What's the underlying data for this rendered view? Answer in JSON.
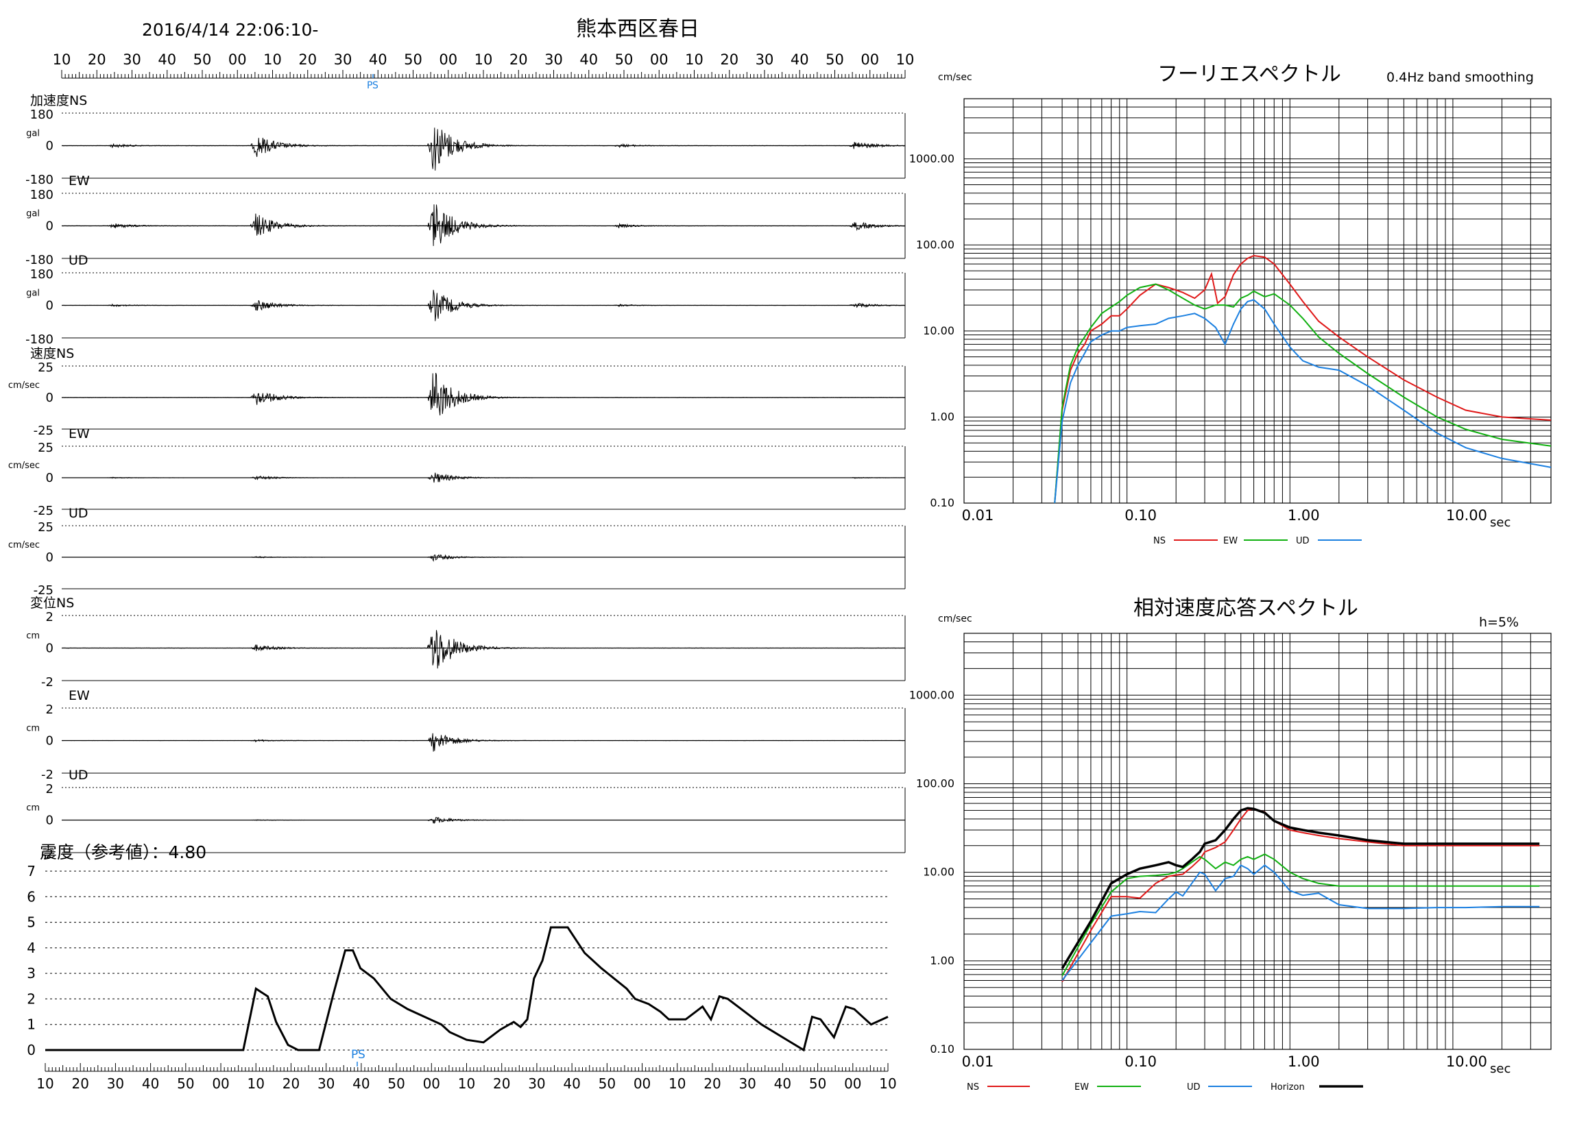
{
  "header": {
    "datetime": "2016/4/14 22:06:10-",
    "station": "熊本西区春日",
    "time_ticks": [
      "10",
      "20",
      "30",
      "40",
      "50",
      "00",
      "10",
      "20",
      "30",
      "40",
      "50",
      "00",
      "10",
      "20",
      "30",
      "40",
      "50",
      "00",
      "10",
      "20",
      "30",
      "40",
      "50",
      "00",
      "10"
    ],
    "phase_labels": [
      "P",
      "S"
    ]
  },
  "colors": {
    "ns": "#e01818",
    "ew": "#10b010",
    "ud": "#1a7fe0",
    "horizon": "#000000",
    "phase": "#1a7fe0",
    "grid": "#000000",
    "trace": "#000000"
  },
  "waveforms": {
    "groups": [
      {
        "name": "加速度",
        "unit": "gal"
      },
      {
        "name": "速度",
        "unit": "cm/sec"
      },
      {
        "name": "変位",
        "unit": "cm"
      }
    ],
    "panels": [
      {
        "id": "acc-ns",
        "group": "加速度",
        "comp": "NS",
        "unit": "gal",
        "top": "180",
        "zero": "0",
        "bottom": "-180",
        "peak": 0.9,
        "events": [
          [
            6,
            0.07
          ],
          [
            23,
            0.42
          ],
          [
            44,
            1.0
          ],
          [
            66,
            0.06
          ],
          [
            94,
            0.16
          ]
        ]
      },
      {
        "id": "acc-ew",
        "group": "",
        "comp": "EW",
        "unit": "gal",
        "top": "180",
        "zero": "0",
        "bottom": "-180",
        "peak": 0.85,
        "events": [
          [
            6,
            0.1
          ],
          [
            23,
            0.48
          ],
          [
            44,
            1.0
          ],
          [
            66,
            0.07
          ],
          [
            94,
            0.17
          ]
        ]
      },
      {
        "id": "acc-ud",
        "group": "",
        "comp": "UD",
        "unit": "gal",
        "top": "180",
        "zero": "0",
        "bottom": "-180",
        "peak": 0.55,
        "events": [
          [
            6,
            0.07
          ],
          [
            23,
            0.35
          ],
          [
            44,
            1.0
          ],
          [
            66,
            0.06
          ],
          [
            94,
            0.16
          ]
        ]
      },
      {
        "id": "vel-ns",
        "group": "速度",
        "comp": "NS",
        "unit": "cm/sec",
        "top": "25",
        "zero": "0",
        "bottom": "-25",
        "peak": 0.95,
        "events": [
          [
            23,
            0.3
          ],
          [
            44,
            1.0
          ]
        ]
      },
      {
        "id": "vel-ew",
        "group": "",
        "comp": "EW",
        "unit": "cm/sec",
        "top": "25",
        "zero": "0",
        "bottom": "-25",
        "peak": 0.2,
        "events": [
          [
            6,
            0.1
          ],
          [
            23,
            0.35
          ],
          [
            44,
            1.0
          ],
          [
            94,
            0.1
          ]
        ]
      },
      {
        "id": "vel-ud",
        "group": "",
        "comp": "UD",
        "unit": "cm/sec",
        "top": "25",
        "zero": "0",
        "bottom": "-25",
        "peak": 0.12,
        "events": [
          [
            23,
            0.25
          ],
          [
            44,
            1.0
          ]
        ]
      },
      {
        "id": "dis-ns",
        "group": "変位",
        "comp": "NS",
        "unit": "cm",
        "top": "2",
        "zero": "0",
        "bottom": "-2",
        "peak": 0.9,
        "events": [
          [
            23,
            0.12
          ],
          [
            44,
            1.0
          ]
        ]
      },
      {
        "id": "dis-ew",
        "group": "",
        "comp": "EW",
        "unit": "cm",
        "top": "2",
        "zero": "0",
        "bottom": "-2",
        "peak": 0.35,
        "events": [
          [
            23,
            0.1
          ],
          [
            44,
            1.0
          ]
        ]
      },
      {
        "id": "dis-ud",
        "group": "",
        "comp": "UD",
        "unit": "cm",
        "top": "2",
        "zero": "0",
        "bottom": "-2",
        "peak": 0.12,
        "events": [
          [
            23,
            0.1
          ],
          [
            44,
            1.0
          ]
        ]
      }
    ]
  },
  "chart_data": [
    {
      "type": "line",
      "title": "震度（参考値）：4.80",
      "id": "intensity",
      "ylim": [
        0,
        7
      ],
      "yticks": [
        "0",
        "1",
        "2",
        "3",
        "4",
        "5",
        "6",
        "7"
      ],
      "x_ticks": [
        "10",
        "20",
        "30",
        "40",
        "50",
        "00",
        "10",
        "20",
        "30",
        "40",
        "50",
        "00",
        "10",
        "20",
        "30",
        "40",
        "50",
        "00",
        "10",
        "20",
        "30",
        "40",
        "50",
        "00",
        "10"
      ],
      "phase_labels": [
        "P",
        "S"
      ],
      "series": [
        {
          "x": [
            0,
            0.235,
            0.25,
            0.264,
            0.274,
            0.288,
            0.3,
            0.315,
            0.325,
            0.342,
            0.356,
            0.365,
            0.374,
            0.39,
            0.41,
            0.43,
            0.45,
            0.47,
            0.48,
            0.5,
            0.52,
            0.54,
            0.556,
            0.564,
            0.572,
            0.58,
            0.59,
            0.6,
            0.62,
            0.64,
            0.66,
            0.69,
            0.7,
            0.716,
            0.73,
            0.74,
            0.76,
            0.78,
            0.79,
            0.8,
            0.81,
            0.83,
            0.85,
            0.88,
            0.9,
            0.91,
            0.92,
            0.936,
            0.95,
            0.96,
            0.98,
            1.0
          ],
          "y": [
            0,
            0,
            2.4,
            2.1,
            1.1,
            0.2,
            0,
            0,
            0,
            2.2,
            3.9,
            3.9,
            3.2,
            2.8,
            2.0,
            1.6,
            1.3,
            1.0,
            0.7,
            0.4,
            0.3,
            0.8,
            1.1,
            0.9,
            1.2,
            2.8,
            3.5,
            4.8,
            4.8,
            3.8,
            3.2,
            2.4,
            2.0,
            1.8,
            1.5,
            1.2,
            1.2,
            1.7,
            1.2,
            2.1,
            2.0,
            1.5,
            1.0,
            0.4,
            0.0,
            1.3,
            1.2,
            0.5,
            1.7,
            1.6,
            1.0,
            1.3
          ]
        }
      ]
    },
    {
      "type": "line",
      "id": "fourier",
      "title": "フーリエスペクトル",
      "subtitle": "0.4Hz band smoothing",
      "ylabel": "cm/sec",
      "xlabel": "sec",
      "xscale": "log",
      "yscale": "log",
      "xlim": [
        0.01,
        40
      ],
      "ylim": [
        0.1,
        5000
      ],
      "xticks": [
        "0.01",
        "0.10",
        "1.00",
        "10.00"
      ],
      "yticks": [
        "0.10",
        "1.00",
        "10.00",
        "100.00",
        "1000.00"
      ],
      "legend": [
        "NS",
        "EW",
        "UD"
      ],
      "legend_position": "bottom",
      "series": [
        {
          "name": "NS",
          "color": "#e01818",
          "x": [
            0.036,
            0.04,
            0.045,
            0.05,
            0.055,
            0.06,
            0.07,
            0.08,
            0.09,
            0.1,
            0.12,
            0.15,
            0.18,
            0.22,
            0.26,
            0.3,
            0.33,
            0.36,
            0.4,
            0.45,
            0.5,
            0.55,
            0.6,
            0.7,
            0.8,
            1.0,
            1.2,
            1.5,
            2.0,
            3.0,
            5.0,
            8.0,
            12,
            20,
            40
          ],
          "y": [
            0.1,
            1.2,
            3.5,
            5.5,
            7,
            10,
            12,
            15,
            15,
            18,
            26,
            35,
            32,
            28,
            24,
            30,
            46,
            21,
            25,
            45,
            60,
            70,
            75,
            72,
            60,
            35,
            22,
            13,
            8.5,
            5.0,
            2.7,
            1.7,
            1.2,
            1.0,
            0.92
          ]
        },
        {
          "name": "EW",
          "color": "#10b010",
          "x": [
            0.036,
            0.04,
            0.045,
            0.05,
            0.055,
            0.06,
            0.07,
            0.08,
            0.09,
            0.1,
            0.12,
            0.15,
            0.18,
            0.22,
            0.26,
            0.3,
            0.35,
            0.4,
            0.45,
            0.5,
            0.55,
            0.6,
            0.7,
            0.8,
            1.0,
            1.2,
            1.5,
            2.0,
            3.0,
            5.0,
            8.0,
            12,
            20,
            40
          ],
          "y": [
            0.1,
            1.3,
            4.0,
            6.5,
            8.5,
            11,
            16,
            19,
            22,
            26,
            32,
            35,
            30,
            24,
            20,
            18,
            20,
            20,
            19,
            24,
            26,
            29,
            25,
            27,
            20,
            14,
            8.5,
            5.5,
            3.2,
            1.7,
            1.0,
            0.72,
            0.55,
            0.46
          ]
        },
        {
          "name": "UD",
          "color": "#1a7fe0",
          "x": [
            0.036,
            0.04,
            0.045,
            0.05,
            0.055,
            0.06,
            0.07,
            0.08,
            0.09,
            0.1,
            0.12,
            0.15,
            0.18,
            0.22,
            0.26,
            0.3,
            0.35,
            0.4,
            0.45,
            0.5,
            0.55,
            0.6,
            0.7,
            0.8,
            1.0,
            1.2,
            1.5,
            2.0,
            3.0,
            5.0,
            8.0,
            12,
            20,
            40
          ],
          "y": [
            0.1,
            0.9,
            2.5,
            4.0,
            5.5,
            7.5,
            9,
            10,
            10,
            11,
            11.5,
            12,
            14,
            15,
            16,
            14,
            11,
            7,
            12,
            18,
            22,
            23,
            18,
            12,
            6.5,
            4.5,
            3.8,
            3.5,
            2.3,
            1.2,
            0.65,
            0.44,
            0.33,
            0.26
          ]
        }
      ]
    },
    {
      "type": "line",
      "id": "response",
      "title": "相対速度応答スペクトル",
      "subtitle": "h=5%",
      "ylabel": "cm/sec",
      "xlabel": "sec",
      "xscale": "log",
      "yscale": "log",
      "xlim": [
        0.01,
        40
      ],
      "ylim": [
        0.1,
        5000
      ],
      "xticks": [
        "0.01",
        "0.10",
        "1.00",
        "10.00"
      ],
      "yticks": [
        "0.10",
        "1.00",
        "10.00",
        "100.00",
        "1000.00"
      ],
      "legend": [
        "NS",
        "EW",
        "UD",
        "Horizon"
      ],
      "legend_position": "bottom",
      "series": [
        {
          "name": "NS",
          "color": "#e01818",
          "width": 2,
          "x": [
            0.04,
            0.06,
            0.08,
            0.1,
            0.12,
            0.15,
            0.18,
            0.2,
            0.22,
            0.25,
            0.28,
            0.3,
            0.35,
            0.4,
            0.45,
            0.5,
            0.55,
            0.6,
            0.7,
            0.8,
            1.0,
            1.2,
            1.5,
            2.0,
            3.0,
            5.0,
            8.0,
            12,
            20,
            34
          ],
          "y": [
            0.58,
            2.2,
            5.3,
            5.3,
            5.1,
            7.5,
            9.0,
            9.3,
            9.5,
            11.5,
            14,
            17,
            19,
            22,
            30,
            40,
            50,
            52,
            48,
            38,
            30,
            28,
            26,
            24,
            22,
            20,
            20,
            20,
            20,
            20
          ]
        },
        {
          "name": "EW",
          "color": "#10b010",
          "width": 2,
          "x": [
            0.04,
            0.06,
            0.08,
            0.1,
            0.12,
            0.15,
            0.18,
            0.2,
            0.22,
            0.25,
            0.28,
            0.3,
            0.35,
            0.4,
            0.45,
            0.5,
            0.55,
            0.6,
            0.7,
            0.8,
            1.0,
            1.2,
            1.5,
            2.0,
            3.0,
            5.0,
            8.0,
            12,
            20,
            34
          ],
          "y": [
            0.68,
            2.6,
            6.0,
            8.5,
            9.0,
            9.2,
            9.5,
            10,
            11,
            13,
            15,
            14,
            11,
            13,
            12,
            14,
            15,
            14,
            16,
            14,
            10,
            8.5,
            7.5,
            7.0,
            7.0,
            7.0,
            7.0,
            7.0,
            7.0,
            7.0
          ]
        },
        {
          "name": "UD",
          "color": "#1a7fe0",
          "width": 2,
          "x": [
            0.04,
            0.06,
            0.08,
            0.1,
            0.12,
            0.15,
            0.18,
            0.2,
            0.22,
            0.25,
            0.28,
            0.3,
            0.35,
            0.4,
            0.45,
            0.5,
            0.55,
            0.6,
            0.7,
            0.8,
            1.0,
            1.2,
            1.5,
            2.0,
            3.0,
            5.0,
            8.0,
            12,
            20,
            34
          ],
          "y": [
            0.6,
            1.6,
            3.2,
            3.4,
            3.6,
            3.5,
            5.0,
            6.0,
            5.4,
            7.5,
            10,
            9.5,
            6.2,
            8.5,
            9,
            12,
            11,
            9.5,
            12,
            10,
            6.2,
            5.5,
            5.8,
            4.3,
            3.9,
            3.9,
            4.0,
            4.0,
            4.1,
            4.1
          ]
        },
        {
          "name": "Horizon",
          "color": "#000000",
          "width": 3.5,
          "x": [
            0.04,
            0.06,
            0.08,
            0.1,
            0.12,
            0.15,
            0.18,
            0.2,
            0.22,
            0.25,
            0.28,
            0.3,
            0.35,
            0.4,
            0.45,
            0.5,
            0.55,
            0.6,
            0.7,
            0.8,
            1.0,
            1.2,
            1.5,
            2.0,
            3.0,
            5.0,
            8.0,
            12,
            20,
            34
          ],
          "y": [
            0.82,
            2.8,
            7.5,
            9.5,
            11,
            12,
            13,
            12,
            11.5,
            14,
            17,
            21,
            23,
            30,
            40,
            50,
            53,
            52,
            47,
            38,
            32,
            30,
            28,
            26,
            23,
            21,
            21,
            21,
            21,
            21
          ]
        }
      ]
    }
  ]
}
